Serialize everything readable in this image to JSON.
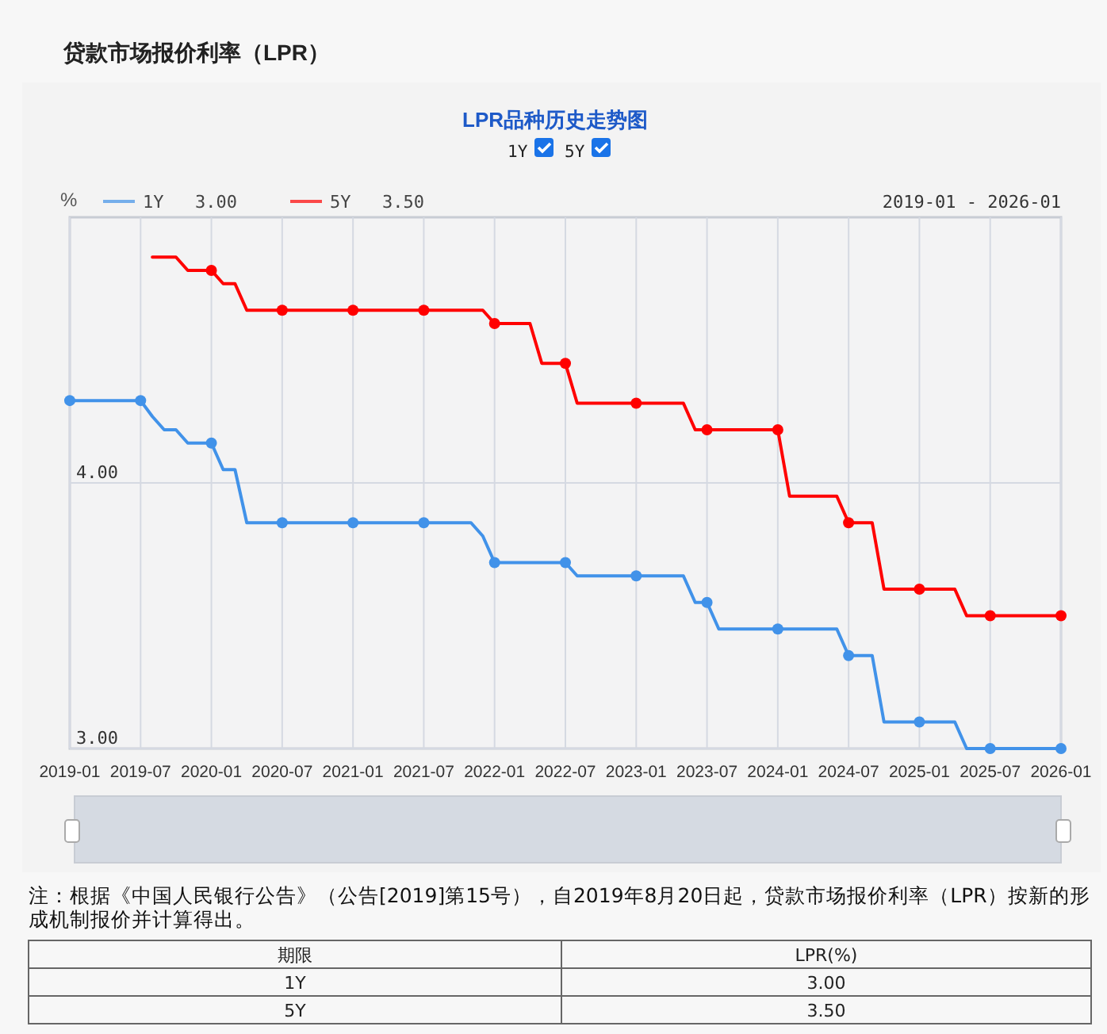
{
  "chart_data": {
    "type": "line",
    "title": "贷款市场报价利率（LPR）",
    "subtitle": "LPR品种历史走势图",
    "ylabel": "%",
    "annotations": [
      "2019-01 - 2026-01",
      "注：根据《中国人民银行公告》（公告[2019]第15号），自2019年8月20日起，贷款市场报价利率（LPR）按新的形成机制报价并计算得出。",
      "期限",
      "LPR(%)",
      "1Y",
      "3.00",
      "5Y",
      "3.50"
    ],
    "x": [
      "2019-01",
      "2019-02",
      "2019-03",
      "2019-04",
      "2019-05",
      "2019-06",
      "2019-07",
      "2019-08",
      "2019-09",
      "2019-10",
      "2019-11",
      "2019-12",
      "2020-01",
      "2020-02",
      "2020-03",
      "2020-04",
      "2020-05",
      "2020-06",
      "2020-07",
      "2020-08",
      "2020-09",
      "2020-10",
      "2020-11",
      "2020-12",
      "2021-01",
      "2021-02",
      "2021-03",
      "2021-04",
      "2021-05",
      "2021-06",
      "2021-07",
      "2021-08",
      "2021-09",
      "2021-10",
      "2021-11",
      "2021-12",
      "2022-01",
      "2022-02",
      "2022-03",
      "2022-04",
      "2022-05",
      "2022-06",
      "2022-07",
      "2022-08",
      "2022-09",
      "2022-10",
      "2022-11",
      "2022-12",
      "2023-01",
      "2023-02",
      "2023-03",
      "2023-04",
      "2023-05",
      "2023-06",
      "2023-07",
      "2023-08",
      "2023-09",
      "2023-10",
      "2023-11",
      "2023-12",
      "2024-01",
      "2024-02",
      "2024-03",
      "2024-04",
      "2024-05",
      "2024-06",
      "2024-07",
      "2024-08",
      "2024-09",
      "2024-10",
      "2024-11",
      "2024-12",
      "2025-01",
      "2025-02",
      "2025-03",
      "2025-04",
      "2025-05",
      "2025-06",
      "2025-07",
      "2025-08",
      "2025-09",
      "2025-10",
      "2025-11",
      "2025-12",
      "2026-01"
    ],
    "series": [
      {
        "name": "1Y",
        "color": "#4192e9",
        "values": [
          4.31,
          4.31,
          4.31,
          4.31,
          4.31,
          4.31,
          4.31,
          4.25,
          4.2,
          4.2,
          4.15,
          4.15,
          4.15,
          4.05,
          4.05,
          3.85,
          3.85,
          3.85,
          3.85,
          3.85,
          3.85,
          3.85,
          3.85,
          3.85,
          3.85,
          3.85,
          3.85,
          3.85,
          3.85,
          3.85,
          3.85,
          3.85,
          3.85,
          3.85,
          3.85,
          3.8,
          3.7,
          3.7,
          3.7,
          3.7,
          3.7,
          3.7,
          3.7,
          3.65,
          3.65,
          3.65,
          3.65,
          3.65,
          3.65,
          3.65,
          3.65,
          3.65,
          3.65,
          3.55,
          3.55,
          3.45,
          3.45,
          3.45,
          3.45,
          3.45,
          3.45,
          3.45,
          3.45,
          3.45,
          3.45,
          3.45,
          3.35,
          3.35,
          3.35,
          3.1,
          3.1,
          3.1,
          3.1,
          3.1,
          3.1,
          3.1,
          3.0,
          3.0,
          3.0,
          3.0,
          3.0,
          3.0,
          3.0,
          3.0,
          3.0
        ]
      },
      {
        "name": "5Y",
        "color": "#ff0000",
        "values": [
          null,
          null,
          null,
          null,
          null,
          null,
          null,
          4.85,
          4.85,
          4.85,
          4.8,
          4.8,
          4.8,
          4.75,
          4.75,
          4.65,
          4.65,
          4.65,
          4.65,
          4.65,
          4.65,
          4.65,
          4.65,
          4.65,
          4.65,
          4.65,
          4.65,
          4.65,
          4.65,
          4.65,
          4.65,
          4.65,
          4.65,
          4.65,
          4.65,
          4.65,
          4.6,
          4.6,
          4.6,
          4.6,
          4.45,
          4.45,
          4.45,
          4.3,
          4.3,
          4.3,
          4.3,
          4.3,
          4.3,
          4.3,
          4.3,
          4.3,
          4.3,
          4.2,
          4.2,
          4.2,
          4.2,
          4.2,
          4.2,
          4.2,
          4.2,
          3.95,
          3.95,
          3.95,
          3.95,
          3.95,
          3.85,
          3.85,
          3.85,
          3.6,
          3.6,
          3.6,
          3.6,
          3.6,
          3.6,
          3.6,
          3.5,
          3.5,
          3.5,
          3.5,
          3.5,
          3.5,
          3.5,
          3.5,
          3.5
        ]
      },
      {
        "type": "scatter",
        "color": "#4192e9",
        "marker": "circle",
        "x": [
          "2019-01",
          "2019-07",
          "2020-01",
          "2020-07",
          "2021-01",
          "2021-07",
          "2022-01",
          "2022-07",
          "2023-01",
          "2023-07",
          "2024-01",
          "2024-07",
          "2025-01",
          "2025-07",
          "2026-01"
        ],
        "values": [
          4.31,
          4.31,
          4.15,
          3.85,
          3.85,
          3.85,
          3.7,
          3.7,
          3.65,
          3.55,
          3.45,
          3.35,
          3.1,
          3.0,
          3.0
        ]
      },
      {
        "type": "scatter",
        "color": "#ff0000",
        "marker": "circle",
        "x": [
          "2020-01",
          "2020-07",
          "2021-01",
          "2021-07",
          "2022-01",
          "2022-07",
          "2023-01",
          "2023-07",
          "2024-01",
          "2024-07",
          "2025-01",
          "2025-07",
          "2026-01"
        ],
        "values": [
          4.8,
          4.65,
          4.65,
          4.65,
          4.6,
          4.45,
          4.3,
          4.2,
          4.2,
          3.85,
          3.6,
          3.5,
          3.5
        ]
      }
    ],
    "xlim": [
      "2019-01",
      "2026-01"
    ],
    "xticks": [
      "2019-01",
      "2019-07",
      "2020-01",
      "2020-07",
      "2021-01",
      "2021-07",
      "2022-01",
      "2022-07",
      "2023-01",
      "2023-07",
      "2024-01",
      "2024-07",
      "2025-01",
      "2025-07",
      "2026-01"
    ],
    "ylim": [
      3,
      5
    ],
    "yticks": [
      {
        "value": 3,
        "label": "3.00"
      },
      {
        "value": 4,
        "label": "4.00"
      }
    ],
    "grid": true,
    "legend": "top left",
    "line_style": "solid"
  }
}
